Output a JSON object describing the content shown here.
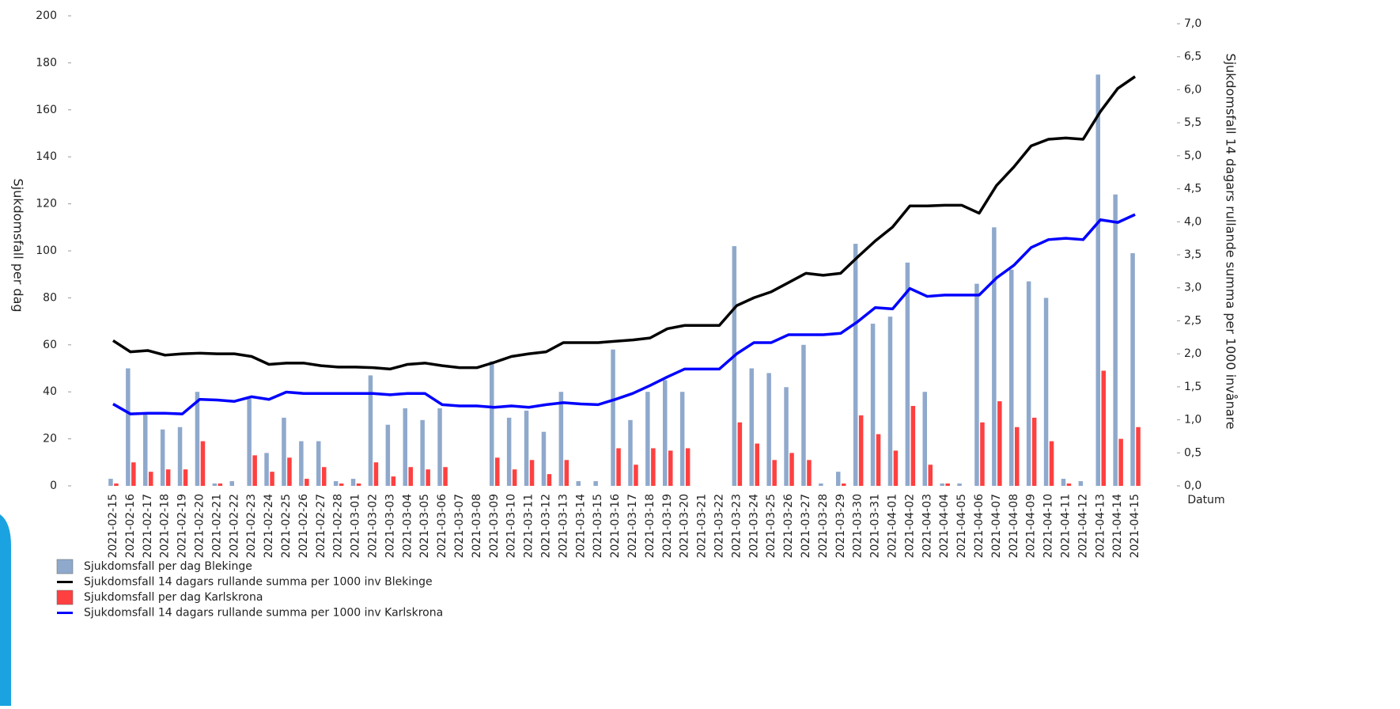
{
  "chart_data": {
    "type": "bar",
    "ylabel": "Sjukdomsfall per dag",
    "y2label": "Sjukdomsfall 14 dagars rullande summa per 1000 invånare",
    "xlabel": "Datum",
    "categories": [
      "2021-02-15",
      "2021-02-16",
      "2021-02-17",
      "2021-02-18",
      "2021-02-19",
      "2021-02-20",
      "2021-02-21",
      "2021-02-22",
      "2021-02-23",
      "2021-02-24",
      "2021-02-25",
      "2021-02-26",
      "2021-02-27",
      "2021-02-28",
      "2021-03-01",
      "2021-03-02",
      "2021-03-03",
      "2021-03-04",
      "2021-03-05",
      "2021-03-06",
      "2021-03-07",
      "2021-03-08",
      "2021-03-09",
      "2021-03-10",
      "2021-03-11",
      "2021-03-12",
      "2021-03-13",
      "2021-03-14",
      "2021-03-15",
      "2021-03-16",
      "2021-03-17",
      "2021-03-18",
      "2021-03-19",
      "2021-03-20",
      "2021-03-21",
      "2021-03-22",
      "2021-03-23",
      "2021-03-24",
      "2021-03-25",
      "2021-03-26",
      "2021-03-27",
      "2021-03-28",
      "2021-03-29",
      "2021-03-30",
      "2021-03-31",
      "2021-04-01",
      "2021-04-02",
      "2021-04-03",
      "2021-04-04",
      "2021-04-05",
      "2021-04-06",
      "2021-04-07",
      "2021-04-08",
      "2021-04-09",
      "2021-04-10",
      "2021-04-11",
      "2021-04-12",
      "2021-04-13",
      "2021-04-14",
      "2021-04-15"
    ],
    "ylim": [
      0,
      200
    ],
    "yticks": [
      0,
      20,
      40,
      60,
      80,
      100,
      120,
      140,
      160,
      180,
      200
    ],
    "y2lim": [
      0,
      7.12
    ],
    "y2ticks": [
      {
        "value": 0,
        "label": "0,0"
      },
      {
        "value": 0.5,
        "label": "0,5"
      },
      {
        "value": 1,
        "label": "1,0"
      },
      {
        "value": 1.5,
        "label": "1,5"
      },
      {
        "value": 2,
        "label": "2,0"
      },
      {
        "value": 2.5,
        "label": "2,5"
      },
      {
        "value": 3,
        "label": "3,0"
      },
      {
        "value": 3.5,
        "label": "3,5"
      },
      {
        "value": 4,
        "label": "4,0"
      },
      {
        "value": 4.5,
        "label": "4,5"
      },
      {
        "value": 5,
        "label": "5,0"
      },
      {
        "value": 5.5,
        "label": "5,5"
      },
      {
        "value": 6,
        "label": "6,0"
      },
      {
        "value": 6.5,
        "label": "6,5"
      },
      {
        "value": 7,
        "label": "7,0"
      }
    ],
    "series": [
      {
        "name": "Sjukdomsfall per dag Blekinge",
        "type": "bar",
        "color": "#8fa9cc",
        "values": [
          3,
          50,
          31,
          24,
          25,
          40,
          1,
          2,
          37,
          14,
          29,
          19,
          19,
          2,
          3,
          47,
          26,
          33,
          28,
          33,
          0,
          0,
          53,
          29,
          32,
          23,
          40,
          2,
          2,
          58,
          28,
          40,
          45,
          40,
          0,
          0,
          102,
          50,
          48,
          42,
          60,
          1,
          6,
          103,
          69,
          72,
          95,
          40,
          1,
          1,
          86,
          110,
          92,
          87,
          80,
          3,
          2,
          175,
          124,
          99
        ]
      },
      {
        "name": "Sjukdomsfall 14 dagars rullande summa per 1000 inv Blekinge",
        "type": "line",
        "axis": "y2",
        "color": "#000000",
        "values": [
          2.2,
          2.03,
          2.05,
          1.98,
          2.0,
          2.01,
          2.0,
          2.0,
          1.96,
          1.84,
          1.86,
          1.86,
          1.82,
          1.8,
          1.8,
          1.79,
          1.77,
          1.84,
          1.86,
          1.82,
          1.79,
          1.79,
          1.87,
          1.96,
          2.0,
          2.03,
          2.17,
          2.17,
          2.17,
          2.19,
          2.21,
          2.24,
          2.38,
          2.43,
          2.43,
          2.43,
          2.73,
          2.85,
          2.94,
          3.08,
          3.22,
          3.19,
          3.22,
          3.47,
          3.71,
          3.92,
          4.24,
          4.24,
          4.25,
          4.25,
          4.13,
          4.55,
          4.83,
          5.15,
          5.25,
          5.27,
          5.25,
          5.67,
          6.02,
          6.2
        ]
      },
      {
        "name": "Sjukdomsfall per dag Karlskrona",
        "type": "bar",
        "color": "#ff4040",
        "values": [
          1,
          10,
          6,
          7,
          7,
          19,
          1,
          0,
          13,
          6,
          12,
          3,
          8,
          1,
          1,
          10,
          4,
          8,
          7,
          8,
          0,
          0,
          12,
          7,
          11,
          5,
          11,
          0,
          0,
          16,
          9,
          16,
          15,
          16,
          0,
          0,
          27,
          18,
          11,
          14,
          11,
          0,
          1,
          30,
          22,
          15,
          34,
          9,
          1,
          0,
          27,
          36,
          25,
          29,
          19,
          1,
          0,
          49,
          20,
          25
        ]
      },
      {
        "name": "Sjukdomsfall 14 dagars rullande summa per 1000 inv Karlskrona",
        "type": "line",
        "axis": "y2",
        "color": "#0000ff",
        "values": [
          1.24,
          1.09,
          1.1,
          1.1,
          1.09,
          1.31,
          1.3,
          1.28,
          1.35,
          1.31,
          1.42,
          1.4,
          1.4,
          1.4,
          1.4,
          1.4,
          1.38,
          1.4,
          1.4,
          1.23,
          1.21,
          1.21,
          1.19,
          1.21,
          1.19,
          1.23,
          1.26,
          1.24,
          1.23,
          1.31,
          1.4,
          1.52,
          1.65,
          1.77,
          1.77,
          1.77,
          2.0,
          2.17,
          2.17,
          2.29,
          2.29,
          2.29,
          2.31,
          2.49,
          2.7,
          2.68,
          2.99,
          2.87,
          2.89,
          2.89,
          2.89,
          3.15,
          3.34,
          3.61,
          3.73,
          3.75,
          3.73,
          4.03,
          3.99,
          4.11
        ]
      }
    ]
  }
}
